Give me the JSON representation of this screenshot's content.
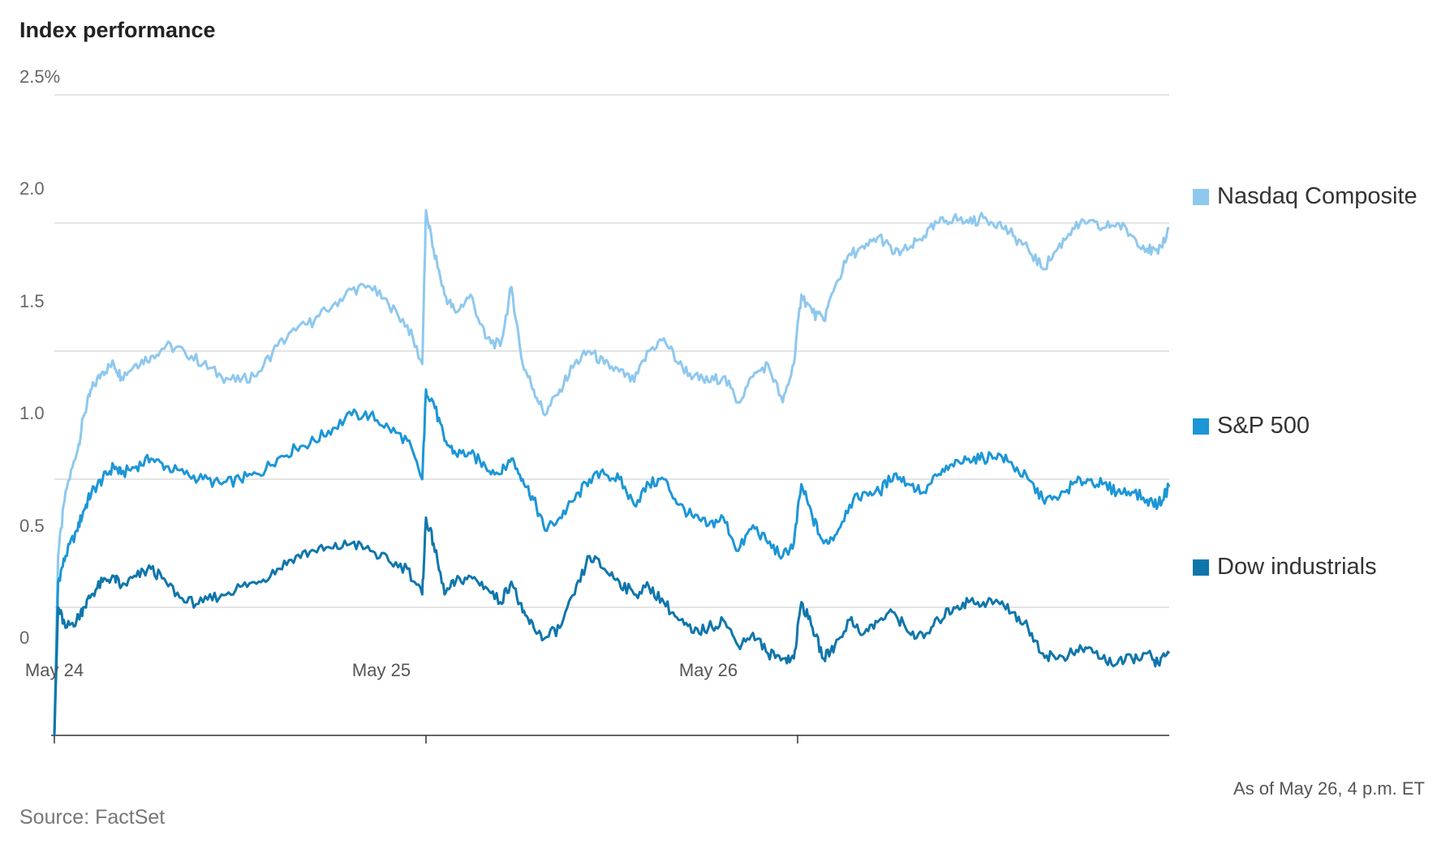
{
  "chart_data": {
    "type": "line",
    "title": "Index performance",
    "ylim": [
      0,
      2.5
    ],
    "y_ticks": [
      "0",
      "0.5",
      "1.0",
      "1.5",
      "2.0",
      "2.5%"
    ],
    "y_tick_values": [
      0,
      0.5,
      1.0,
      1.5,
      2.0,
      2.5
    ],
    "x_range": [
      0,
      3
    ],
    "x_ticks": [
      {
        "value": 0,
        "label": "May 24"
      },
      {
        "value": 1,
        "label": "May 25"
      },
      {
        "value": 2,
        "label": "May 26"
      }
    ],
    "grid": true,
    "legend_position": "right",
    "note": "As of May 26, 4 p.m. ET",
    "source": "Source: FactSet",
    "series": [
      {
        "name": "Nasdaq Composite",
        "color": "#8ec8ee",
        "points": [
          [
            0.0,
            0.0
          ],
          [
            0.01,
            0.7
          ],
          [
            0.03,
            0.95
          ],
          [
            0.06,
            1.1
          ],
          [
            0.08,
            1.25
          ],
          [
            0.1,
            1.35
          ],
          [
            0.13,
            1.42
          ],
          [
            0.16,
            1.45
          ],
          [
            0.18,
            1.4
          ],
          [
            0.22,
            1.45
          ],
          [
            0.26,
            1.48
          ],
          [
            0.3,
            1.52
          ],
          [
            0.35,
            1.5
          ],
          [
            0.4,
            1.45
          ],
          [
            0.45,
            1.4
          ],
          [
            0.5,
            1.38
          ],
          [
            0.55,
            1.42
          ],
          [
            0.6,
            1.52
          ],
          [
            0.65,
            1.58
          ],
          [
            0.7,
            1.62
          ],
          [
            0.75,
            1.68
          ],
          [
            0.8,
            1.74
          ],
          [
            0.85,
            1.75
          ],
          [
            0.9,
            1.68
          ],
          [
            0.95,
            1.6
          ],
          [
            0.99,
            1.45
          ],
          [
            1.0,
            2.05
          ],
          [
            1.02,
            1.9
          ],
          [
            1.05,
            1.72
          ],
          [
            1.08,
            1.65
          ],
          [
            1.12,
            1.72
          ],
          [
            1.16,
            1.55
          ],
          [
            1.2,
            1.52
          ],
          [
            1.23,
            1.75
          ],
          [
            1.26,
            1.45
          ],
          [
            1.29,
            1.35
          ],
          [
            1.32,
            1.25
          ],
          [
            1.36,
            1.35
          ],
          [
            1.4,
            1.45
          ],
          [
            1.44,
            1.5
          ],
          [
            1.48,
            1.45
          ],
          [
            1.52,
            1.42
          ],
          [
            1.56,
            1.38
          ],
          [
            1.6,
            1.5
          ],
          [
            1.64,
            1.55
          ],
          [
            1.68,
            1.45
          ],
          [
            1.72,
            1.4
          ],
          [
            1.76,
            1.38
          ],
          [
            1.8,
            1.4
          ],
          [
            1.84,
            1.3
          ],
          [
            1.88,
            1.4
          ],
          [
            1.92,
            1.45
          ],
          [
            1.96,
            1.3
          ],
          [
            1.99,
            1.45
          ],
          [
            2.01,
            1.72
          ],
          [
            2.04,
            1.65
          ],
          [
            2.07,
            1.62
          ],
          [
            2.1,
            1.75
          ],
          [
            2.14,
            1.88
          ],
          [
            2.18,
            1.9
          ],
          [
            2.22,
            1.95
          ],
          [
            2.26,
            1.88
          ],
          [
            2.3,
            1.9
          ],
          [
            2.34,
            1.95
          ],
          [
            2.38,
            2.0
          ],
          [
            2.42,
            2.02
          ],
          [
            2.46,
            2.0
          ],
          [
            2.5,
            2.02
          ],
          [
            2.54,
            2.0
          ],
          [
            2.58,
            1.95
          ],
          [
            2.62,
            1.9
          ],
          [
            2.66,
            1.82
          ],
          [
            2.7,
            1.9
          ],
          [
            2.74,
            1.98
          ],
          [
            2.78,
            2.0
          ],
          [
            2.82,
            1.98
          ],
          [
            2.86,
            2.0
          ],
          [
            2.9,
            1.95
          ],
          [
            2.94,
            1.9
          ],
          [
            2.97,
            1.88
          ],
          [
            3.0,
            1.98
          ]
        ]
      },
      {
        "name": "S&P 500",
        "color": "#1c96d6",
        "points": [
          [
            0.0,
            0.0
          ],
          [
            0.01,
            0.6
          ],
          [
            0.03,
            0.7
          ],
          [
            0.06,
            0.8
          ],
          [
            0.08,
            0.88
          ],
          [
            0.1,
            0.95
          ],
          [
            0.13,
            1.0
          ],
          [
            0.16,
            1.05
          ],
          [
            0.18,
            1.02
          ],
          [
            0.22,
            1.05
          ],
          [
            0.26,
            1.08
          ],
          [
            0.3,
            1.05
          ],
          [
            0.35,
            1.02
          ],
          [
            0.4,
            1.0
          ],
          [
            0.45,
            0.98
          ],
          [
            0.5,
            1.0
          ],
          [
            0.55,
            1.02
          ],
          [
            0.6,
            1.08
          ],
          [
            0.65,
            1.12
          ],
          [
            0.7,
            1.15
          ],
          [
            0.75,
            1.2
          ],
          [
            0.8,
            1.25
          ],
          [
            0.85,
            1.25
          ],
          [
            0.9,
            1.2
          ],
          [
            0.95,
            1.15
          ],
          [
            0.99,
            1.0
          ],
          [
            1.0,
            1.35
          ],
          [
            1.02,
            1.3
          ],
          [
            1.05,
            1.15
          ],
          [
            1.08,
            1.1
          ],
          [
            1.12,
            1.1
          ],
          [
            1.16,
            1.05
          ],
          [
            1.2,
            1.02
          ],
          [
            1.23,
            1.08
          ],
          [
            1.26,
            1.0
          ],
          [
            1.29,
            0.92
          ],
          [
            1.32,
            0.8
          ],
          [
            1.36,
            0.85
          ],
          [
            1.4,
            0.92
          ],
          [
            1.44,
            1.0
          ],
          [
            1.48,
            1.02
          ],
          [
            1.52,
            1.0
          ],
          [
            1.56,
            0.9
          ],
          [
            1.6,
            0.98
          ],
          [
            1.64,
            1.0
          ],
          [
            1.68,
            0.9
          ],
          [
            1.72,
            0.85
          ],
          [
            1.76,
            0.82
          ],
          [
            1.8,
            0.85
          ],
          [
            1.84,
            0.72
          ],
          [
            1.88,
            0.82
          ],
          [
            1.92,
            0.75
          ],
          [
            1.96,
            0.7
          ],
          [
            1.99,
            0.75
          ],
          [
            2.01,
            0.98
          ],
          [
            2.04,
            0.85
          ],
          [
            2.07,
            0.75
          ],
          [
            2.1,
            0.78
          ],
          [
            2.14,
            0.9
          ],
          [
            2.18,
            0.95
          ],
          [
            2.22,
            0.95
          ],
          [
            2.26,
            1.02
          ],
          [
            2.3,
            0.98
          ],
          [
            2.34,
            0.95
          ],
          [
            2.38,
            1.02
          ],
          [
            2.42,
            1.05
          ],
          [
            2.46,
            1.08
          ],
          [
            2.5,
            1.08
          ],
          [
            2.54,
            1.1
          ],
          [
            2.58,
            1.05
          ],
          [
            2.62,
            1.0
          ],
          [
            2.66,
            0.92
          ],
          [
            2.7,
            0.92
          ],
          [
            2.74,
            0.98
          ],
          [
            2.78,
            1.0
          ],
          [
            2.82,
            0.98
          ],
          [
            2.86,
            0.95
          ],
          [
            2.9,
            0.95
          ],
          [
            2.94,
            0.92
          ],
          [
            2.97,
            0.9
          ],
          [
            3.0,
            0.97
          ]
        ]
      },
      {
        "name": "Dow industrials",
        "color": "#0f76ab",
        "points": [
          [
            0.0,
            0.0
          ],
          [
            0.01,
            0.5
          ],
          [
            0.03,
            0.42
          ],
          [
            0.06,
            0.45
          ],
          [
            0.08,
            0.5
          ],
          [
            0.1,
            0.55
          ],
          [
            0.13,
            0.6
          ],
          [
            0.16,
            0.62
          ],
          [
            0.18,
            0.58
          ],
          [
            0.22,
            0.62
          ],
          [
            0.26,
            0.65
          ],
          [
            0.3,
            0.6
          ],
          [
            0.35,
            0.52
          ],
          [
            0.4,
            0.52
          ],
          [
            0.45,
            0.55
          ],
          [
            0.5,
            0.58
          ],
          [
            0.55,
            0.6
          ],
          [
            0.6,
            0.65
          ],
          [
            0.65,
            0.7
          ],
          [
            0.7,
            0.72
          ],
          [
            0.75,
            0.73
          ],
          [
            0.8,
            0.75
          ],
          [
            0.85,
            0.72
          ],
          [
            0.9,
            0.68
          ],
          [
            0.95,
            0.65
          ],
          [
            0.99,
            0.55
          ],
          [
            1.0,
            0.85
          ],
          [
            1.02,
            0.75
          ],
          [
            1.05,
            0.55
          ],
          [
            1.08,
            0.6
          ],
          [
            1.12,
            0.62
          ],
          [
            1.16,
            0.58
          ],
          [
            1.2,
            0.52
          ],
          [
            1.23,
            0.6
          ],
          [
            1.26,
            0.48
          ],
          [
            1.29,
            0.42
          ],
          [
            1.32,
            0.38
          ],
          [
            1.36,
            0.42
          ],
          [
            1.4,
            0.55
          ],
          [
            1.44,
            0.7
          ],
          [
            1.48,
            0.65
          ],
          [
            1.52,
            0.6
          ],
          [
            1.56,
            0.55
          ],
          [
            1.6,
            0.58
          ],
          [
            1.64,
            0.52
          ],
          [
            1.68,
            0.45
          ],
          [
            1.72,
            0.4
          ],
          [
            1.76,
            0.42
          ],
          [
            1.8,
            0.45
          ],
          [
            1.84,
            0.35
          ],
          [
            1.88,
            0.4
          ],
          [
            1.92,
            0.32
          ],
          [
            1.96,
            0.3
          ],
          [
            1.99,
            0.3
          ],
          [
            2.01,
            0.52
          ],
          [
            2.04,
            0.42
          ],
          [
            2.07,
            0.3
          ],
          [
            2.1,
            0.35
          ],
          [
            2.14,
            0.45
          ],
          [
            2.18,
            0.4
          ],
          [
            2.22,
            0.45
          ],
          [
            2.26,
            0.48
          ],
          [
            2.3,
            0.4
          ],
          [
            2.34,
            0.38
          ],
          [
            2.38,
            0.45
          ],
          [
            2.42,
            0.5
          ],
          [
            2.46,
            0.52
          ],
          [
            2.5,
            0.52
          ],
          [
            2.54,
            0.52
          ],
          [
            2.58,
            0.48
          ],
          [
            2.62,
            0.42
          ],
          [
            2.66,
            0.32
          ],
          [
            2.7,
            0.3
          ],
          [
            2.74,
            0.32
          ],
          [
            2.78,
            0.34
          ],
          [
            2.82,
            0.3
          ],
          [
            2.86,
            0.28
          ],
          [
            2.9,
            0.3
          ],
          [
            2.94,
            0.32
          ],
          [
            2.97,
            0.28
          ],
          [
            3.0,
            0.32
          ]
        ]
      }
    ]
  }
}
